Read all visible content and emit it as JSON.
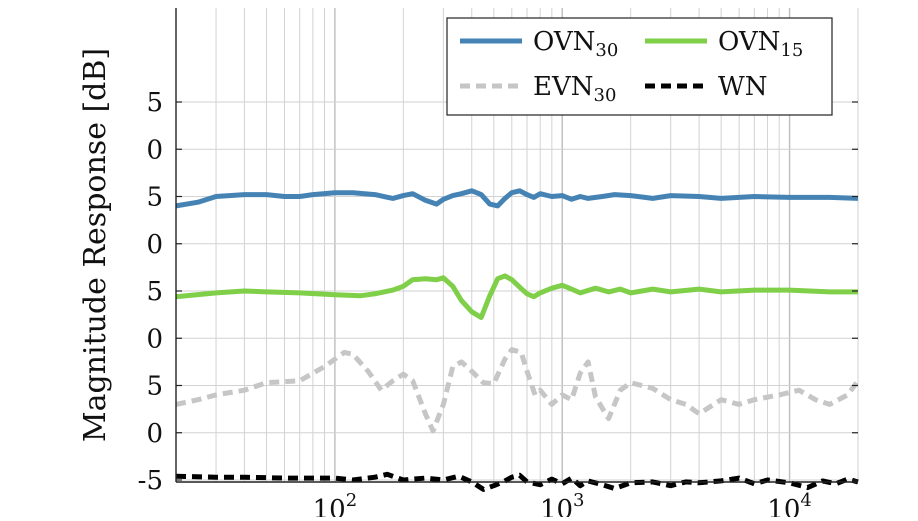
{
  "chart_data": {
    "type": "line",
    "title": "",
    "xlabel": "",
    "ylabel": "Magnitude Response [dB]",
    "x_scale": "log",
    "xlim": [
      20,
      20000
    ],
    "x_ticks": [
      {
        "value": 100,
        "base": "10",
        "exp": "2"
      },
      {
        "value": 1000,
        "base": "10",
        "exp": "3"
      },
      {
        "value": 10000,
        "base": "10",
        "exp": "4"
      }
    ],
    "y_tick_labels": [
      "5",
      "0",
      "5",
      "0",
      "5",
      "0",
      "5",
      "0",
      "-5"
    ],
    "grid": true,
    "legend_position": "top-right",
    "series": [
      {
        "name": "OVN",
        "subscript": "30",
        "color": "#4683b5",
        "dash": "solid",
        "offset_db": 30,
        "x": [
          20,
          25,
          30,
          40,
          50,
          60,
          70,
          80,
          100,
          120,
          150,
          180,
          200,
          220,
          250,
          280,
          300,
          330,
          360,
          400,
          440,
          480,
          520,
          560,
          600,
          650,
          700,
          750,
          800,
          900,
          1000,
          1100,
          1200,
          1300,
          1500,
          1700,
          2000,
          2500,
          3000,
          4000,
          5000,
          7000,
          10000,
          15000,
          20000
        ],
        "y": [
          -1.0,
          -0.6,
          0.0,
          0.2,
          0.2,
          0.0,
          0.0,
          0.2,
          0.4,
          0.4,
          0.2,
          -0.2,
          0.1,
          0.3,
          -0.4,
          -0.8,
          -0.3,
          0.1,
          0.3,
          0.6,
          0.2,
          -0.8,
          -1.0,
          -0.2,
          0.4,
          0.6,
          0.2,
          -0.1,
          0.3,
          0.0,
          0.1,
          -0.3,
          0.0,
          -0.2,
          0.0,
          0.2,
          0.1,
          -0.2,
          0.1,
          0.0,
          -0.2,
          0.0,
          -0.1,
          -0.1,
          -0.2
        ]
      },
      {
        "name": "OVN",
        "subscript": "15",
        "color": "#7fcf48",
        "dash": "solid",
        "offset_db": 20,
        "x": [
          20,
          30,
          40,
          50,
          70,
          100,
          130,
          150,
          180,
          200,
          220,
          250,
          280,
          300,
          330,
          360,
          400,
          440,
          480,
          520,
          560,
          600,
          650,
          700,
          750,
          800,
          900,
          1000,
          1100,
          1200,
          1400,
          1600,
          1800,
          2000,
          2500,
          3000,
          4000,
          5000,
          7000,
          10000,
          15000,
          20000
        ],
        "y": [
          -0.6,
          -0.2,
          0.0,
          -0.1,
          -0.2,
          -0.4,
          -0.5,
          -0.3,
          0.1,
          0.5,
          1.2,
          1.3,
          1.2,
          1.4,
          0.5,
          -1.0,
          -2.2,
          -2.8,
          -0.5,
          1.3,
          1.6,
          1.2,
          0.4,
          -0.3,
          -0.6,
          -0.2,
          0.3,
          0.6,
          0.2,
          -0.2,
          0.3,
          -0.1,
          0.2,
          -0.2,
          0.2,
          -0.1,
          0.2,
          -0.1,
          0.1,
          0.1,
          -0.1,
          -0.1
        ]
      },
      {
        "name": "EVN",
        "subscript": "30",
        "color": "#c6c6c6",
        "dash": "dashed",
        "offset_db": 10,
        "x": [
          20,
          25,
          30,
          40,
          50,
          70,
          90,
          110,
          120,
          140,
          160,
          180,
          200,
          220,
          250,
          270,
          300,
          330,
          360,
          400,
          450,
          500,
          560,
          600,
          660,
          700,
          760,
          800,
          900,
          1000,
          1100,
          1200,
          1300,
          1400,
          1600,
          1800,
          2000,
          2500,
          3000,
          3500,
          4000,
          5000,
          6000,
          7000,
          9000,
          11000,
          13000,
          15000,
          18000,
          20000
        ],
        "y": [
          -2.0,
          -1.5,
          -1.0,
          -0.5,
          0.3,
          0.5,
          2.0,
          3.5,
          3.3,
          1.5,
          -0.5,
          0.5,
          1.2,
          0.5,
          -3.0,
          -4.8,
          -2.0,
          2.0,
          2.5,
          1.5,
          0.3,
          0.2,
          2.8,
          3.8,
          3.5,
          1.5,
          -1.0,
          -0.5,
          -2.0,
          -1.0,
          -1.5,
          1.3,
          2.5,
          -1.2,
          -3.5,
          -0.5,
          0.3,
          -0.3,
          -1.5,
          -2.0,
          -3.0,
          -1.5,
          -2.0,
          -1.5,
          -1.0,
          -0.5,
          -1.5,
          -2.0,
          -1.0,
          0.5
        ]
      },
      {
        "name": "WN",
        "subscript": "",
        "color": "#000000",
        "dash": "dashed",
        "offset_db": 0,
        "x": [
          20,
          30,
          40,
          60,
          80,
          100,
          120,
          150,
          170,
          200,
          250,
          300,
          350,
          400,
          450,
          500,
          550,
          600,
          650,
          700,
          800,
          900,
          1000,
          1100,
          1200,
          1300,
          1500,
          1700,
          2000,
          2500,
          3000,
          3500,
          4000,
          5000,
          6000,
          7000,
          8000,
          10000,
          12000,
          14000,
          16000,
          18000,
          20000
        ],
        "y": [
          0.4,
          0.3,
          0.3,
          0.2,
          0.2,
          0.2,
          0.0,
          0.3,
          0.6,
          0.0,
          0.2,
          0.0,
          0.4,
          -0.2,
          -1.0,
          -0.6,
          -0.2,
          0.3,
          0.5,
          -0.2,
          -0.5,
          0.1,
          -0.4,
          0.2,
          -0.6,
          -0.1,
          -0.5,
          -0.9,
          -0.3,
          -0.2,
          -0.6,
          -0.2,
          -0.3,
          -0.1,
          0.2,
          -0.4,
          0.0,
          -0.3,
          -0.8,
          -0.1,
          -0.4,
          0.1,
          -0.2
        ]
      }
    ]
  }
}
